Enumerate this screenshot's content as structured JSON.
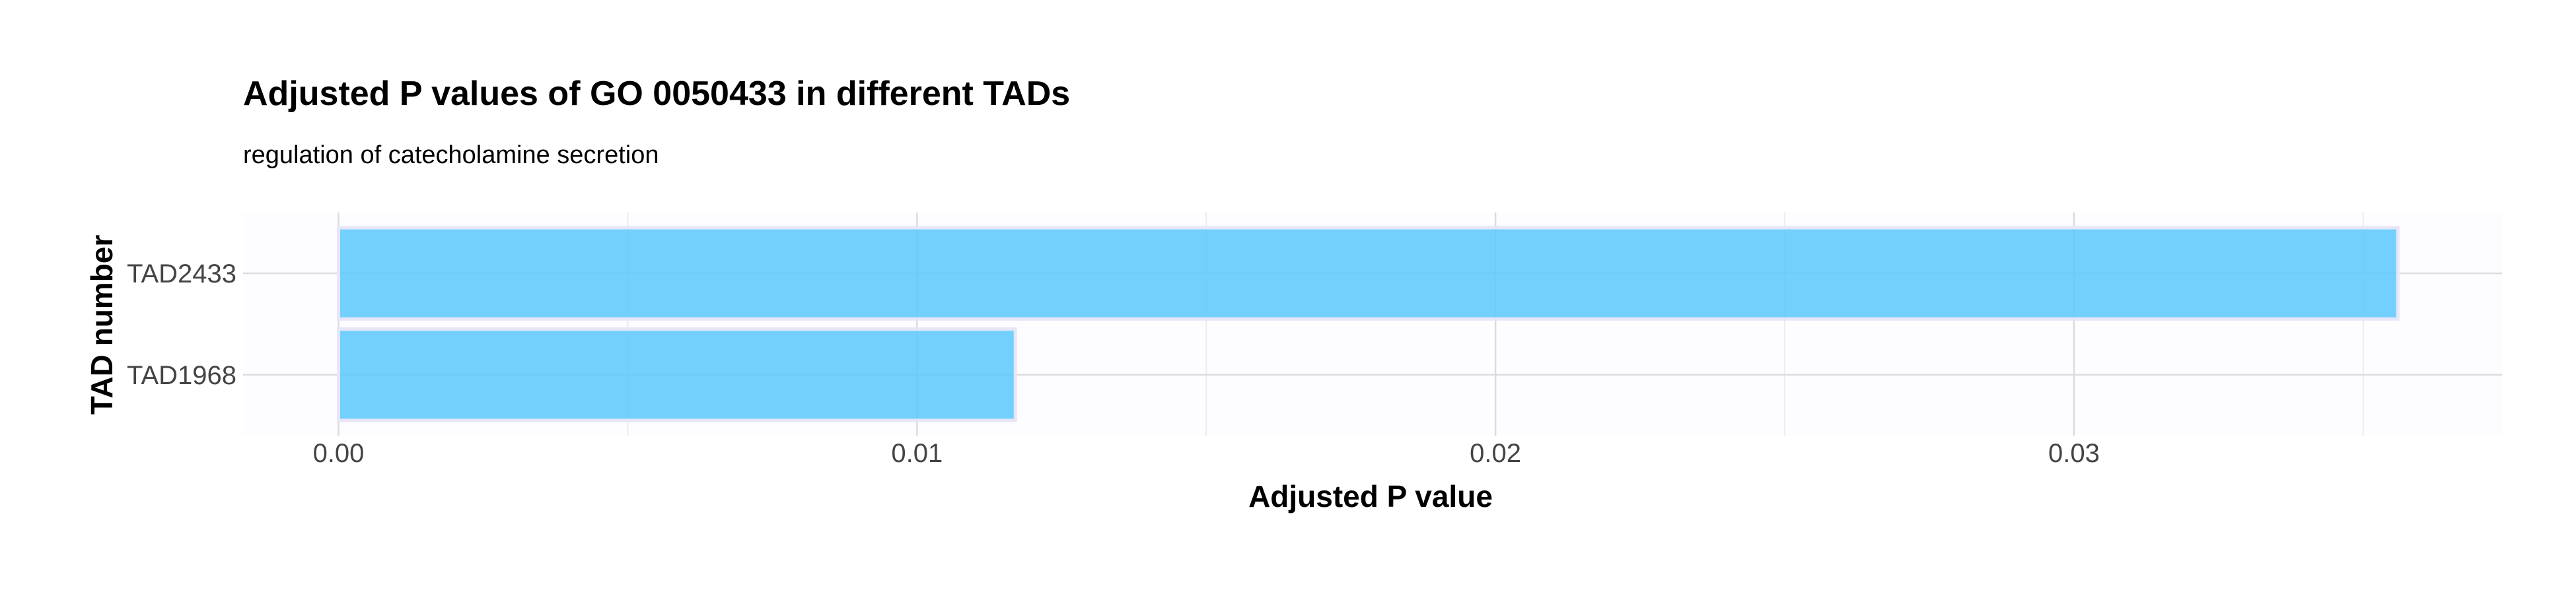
{
  "chart_data": {
    "type": "bar",
    "orientation": "horizontal",
    "title": "Adjusted P values of GO 0050433 in different TADs",
    "subtitle": "regulation of catecholamine secretion",
    "xlabel": "Adjusted P value",
    "ylabel": "TAD number",
    "categories": [
      "TAD2433",
      "TAD1968"
    ],
    "values": [
      0.0356,
      0.0117
    ],
    "xlim": [
      -0.00165,
      0.0374
    ],
    "xticks": [
      0,
      0.01,
      0.02,
      0.03
    ],
    "xtick_labels": [
      "0.00",
      "0.01",
      "0.02",
      "0.03"
    ],
    "grid": true,
    "bar_color": "#5bc8fb",
    "bar_outline_color": "#e6e6f7"
  }
}
